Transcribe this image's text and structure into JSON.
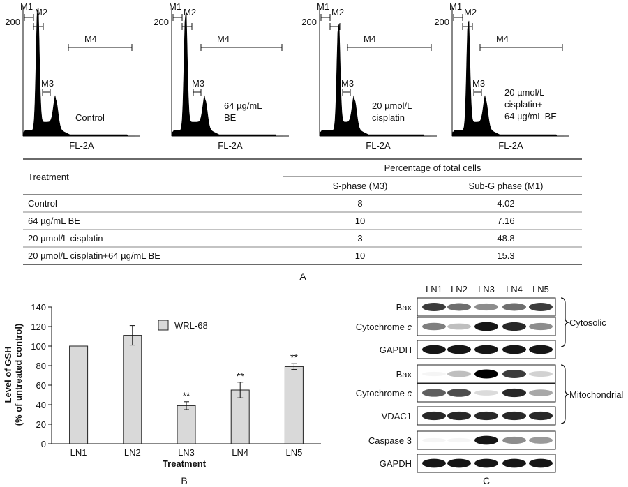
{
  "panel_a": {
    "label": "A",
    "histograms": [
      {
        "marker_labels": [
          "M1",
          "M2",
          "M3",
          "M4"
        ],
        "y_tick": "200",
        "x_label": "FL-2A",
        "treatment_lines": [
          "Control"
        ]
      },
      {
        "marker_labels": [
          "M1",
          "M2",
          "M3",
          "M4"
        ],
        "y_tick": "200",
        "x_label": "FL-2A",
        "treatment_lines": [
          "64 µg/mL",
          "BE"
        ]
      },
      {
        "marker_labels": [
          "M1",
          "M2",
          "M3",
          "M4"
        ],
        "y_tick": "200",
        "x_label": "FL-2A",
        "treatment_lines": [
          "20 µmol/L",
          "cisplatin"
        ]
      },
      {
        "marker_labels": [
          "M1",
          "M2",
          "M3",
          "M4"
        ],
        "y_tick": "200",
        "x_label": "FL-2A",
        "treatment_lines": [
          "20 µmol/L",
          "cisplatin+",
          "64 µg/mL BE"
        ]
      }
    ],
    "table": {
      "col_treatment": "Treatment",
      "group_header": "Percentage of total cells",
      "col_s_phase": "S-phase (M3)",
      "col_sub_g": "Sub-G phase (M1)",
      "rows": [
        {
          "treatment": "Control",
          "s_phase": "8",
          "sub_g": "4.02"
        },
        {
          "treatment": "64 µg/mL BE",
          "s_phase": "10",
          "sub_g": "7.16"
        },
        {
          "treatment": "20 µmol/L cisplatin",
          "s_phase": "3",
          "sub_g": "48.8"
        },
        {
          "treatment": "20 µmol/L cisplatin+64 µg/mL BE",
          "s_phase": "10",
          "sub_g": "15.3"
        }
      ]
    }
  },
  "panel_b": {
    "label": "B",
    "ylabel_line1": "Level of GSH",
    "ylabel_line2": "(% of untreated control)",
    "xlabel": "Treatment",
    "significance_mark": "**",
    "y_ticks": [
      "0",
      "20",
      "40",
      "60",
      "80",
      "100",
      "120",
      "140"
    ]
  },
  "chart_data": {
    "type": "bar",
    "categories": [
      "LN1",
      "LN2",
      "LN3",
      "LN4",
      "LN5"
    ],
    "series": [
      {
        "name": "WRL-68",
        "values": [
          100,
          111,
          39,
          55,
          79
        ],
        "errors": [
          0,
          10,
          4,
          8,
          3
        ]
      }
    ],
    "significant": [
      false,
      false,
      true,
      true,
      true
    ],
    "title": "",
    "xlabel": "Treatment",
    "ylabel": "Level of GSH (% of untreated control)",
    "ylim": [
      0,
      140
    ],
    "grid": false,
    "legend": "top-right"
  },
  "panel_c": {
    "label": "C",
    "lanes": [
      "LN1",
      "LN2",
      "LN3",
      "LN4",
      "LN5"
    ],
    "blots": [
      {
        "label": "Bax",
        "intensity": [
          0.85,
          0.7,
          0.6,
          0.7,
          0.85
        ]
      },
      {
        "label": "Cytochrome",
        "suffix": "c",
        "intensity": [
          0.65,
          0.4,
          0.95,
          0.9,
          0.6
        ]
      },
      {
        "label": "GAPDH",
        "intensity": [
          0.95,
          0.95,
          0.95,
          0.95,
          0.95
        ]
      },
      {
        "label": "Bax",
        "intensity": [
          0.05,
          0.4,
          1.0,
          0.85,
          0.3
        ]
      },
      {
        "label": "Cytochrome",
        "suffix": "c",
        "intensity": [
          0.75,
          0.8,
          0.25,
          0.9,
          0.5
        ]
      },
      {
        "label": "VDAC1",
        "intensity": [
          0.9,
          0.9,
          0.9,
          0.9,
          0.9
        ]
      },
      {
        "label": "Caspase 3",
        "intensity": [
          0.05,
          0.05,
          0.95,
          0.6,
          0.55
        ]
      },
      {
        "label": "GAPDH",
        "intensity": [
          0.95,
          0.95,
          0.95,
          0.95,
          0.95
        ]
      }
    ],
    "groups": [
      {
        "label": "Cytosolic"
      },
      {
        "label": "Mitochondrial"
      }
    ]
  }
}
